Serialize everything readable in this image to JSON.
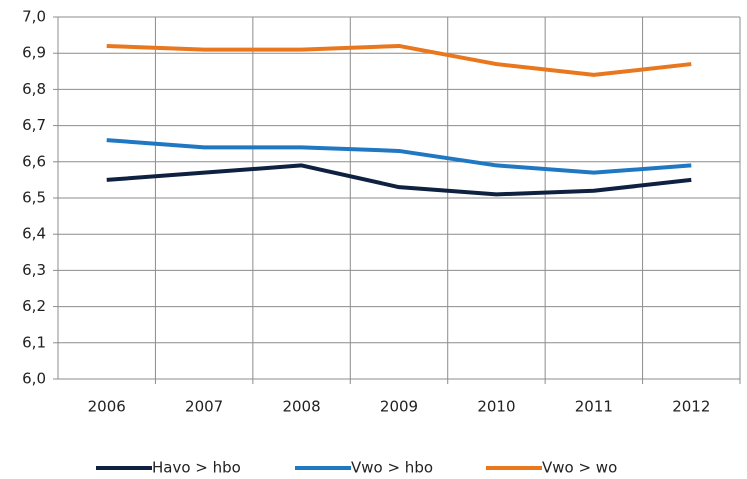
{
  "chart_data": {
    "type": "line",
    "categories": [
      "2006",
      "2007",
      "2008",
      "2009",
      "2010",
      "2011",
      "2012"
    ],
    "series": [
      {
        "name": "Havo > hbo",
        "color": "#0f2140",
        "values": [
          6.55,
          6.57,
          6.59,
          6.53,
          6.51,
          6.52,
          6.55
        ]
      },
      {
        "name": "Vwo > hbo",
        "color": "#1f78c1",
        "values": [
          6.66,
          6.64,
          6.64,
          6.63,
          6.59,
          6.57,
          6.59
        ]
      },
      {
        "name": "Vwo > wo",
        "color": "#e8771e",
        "values": [
          6.92,
          6.91,
          6.91,
          6.92,
          6.87,
          6.84,
          6.87
        ]
      }
    ],
    "ylim": [
      6.0,
      7.0
    ],
    "yticks": [
      {
        "value": 6.0,
        "label": "6,0"
      },
      {
        "value": 6.1,
        "label": "6,1"
      },
      {
        "value": 6.2,
        "label": "6,2"
      },
      {
        "value": 6.3,
        "label": "6,3"
      },
      {
        "value": 6.4,
        "label": "6,4"
      },
      {
        "value": 6.5,
        "label": "6,5"
      },
      {
        "value": 6.6,
        "label": "6,6"
      },
      {
        "value": 6.7,
        "label": "6,7"
      },
      {
        "value": 6.8,
        "label": "6,8"
      },
      {
        "value": 6.9,
        "label": "6,9"
      },
      {
        "value": 7.0,
        "label": "7,0"
      }
    ],
    "grid": true,
    "legend": "bottom"
  }
}
